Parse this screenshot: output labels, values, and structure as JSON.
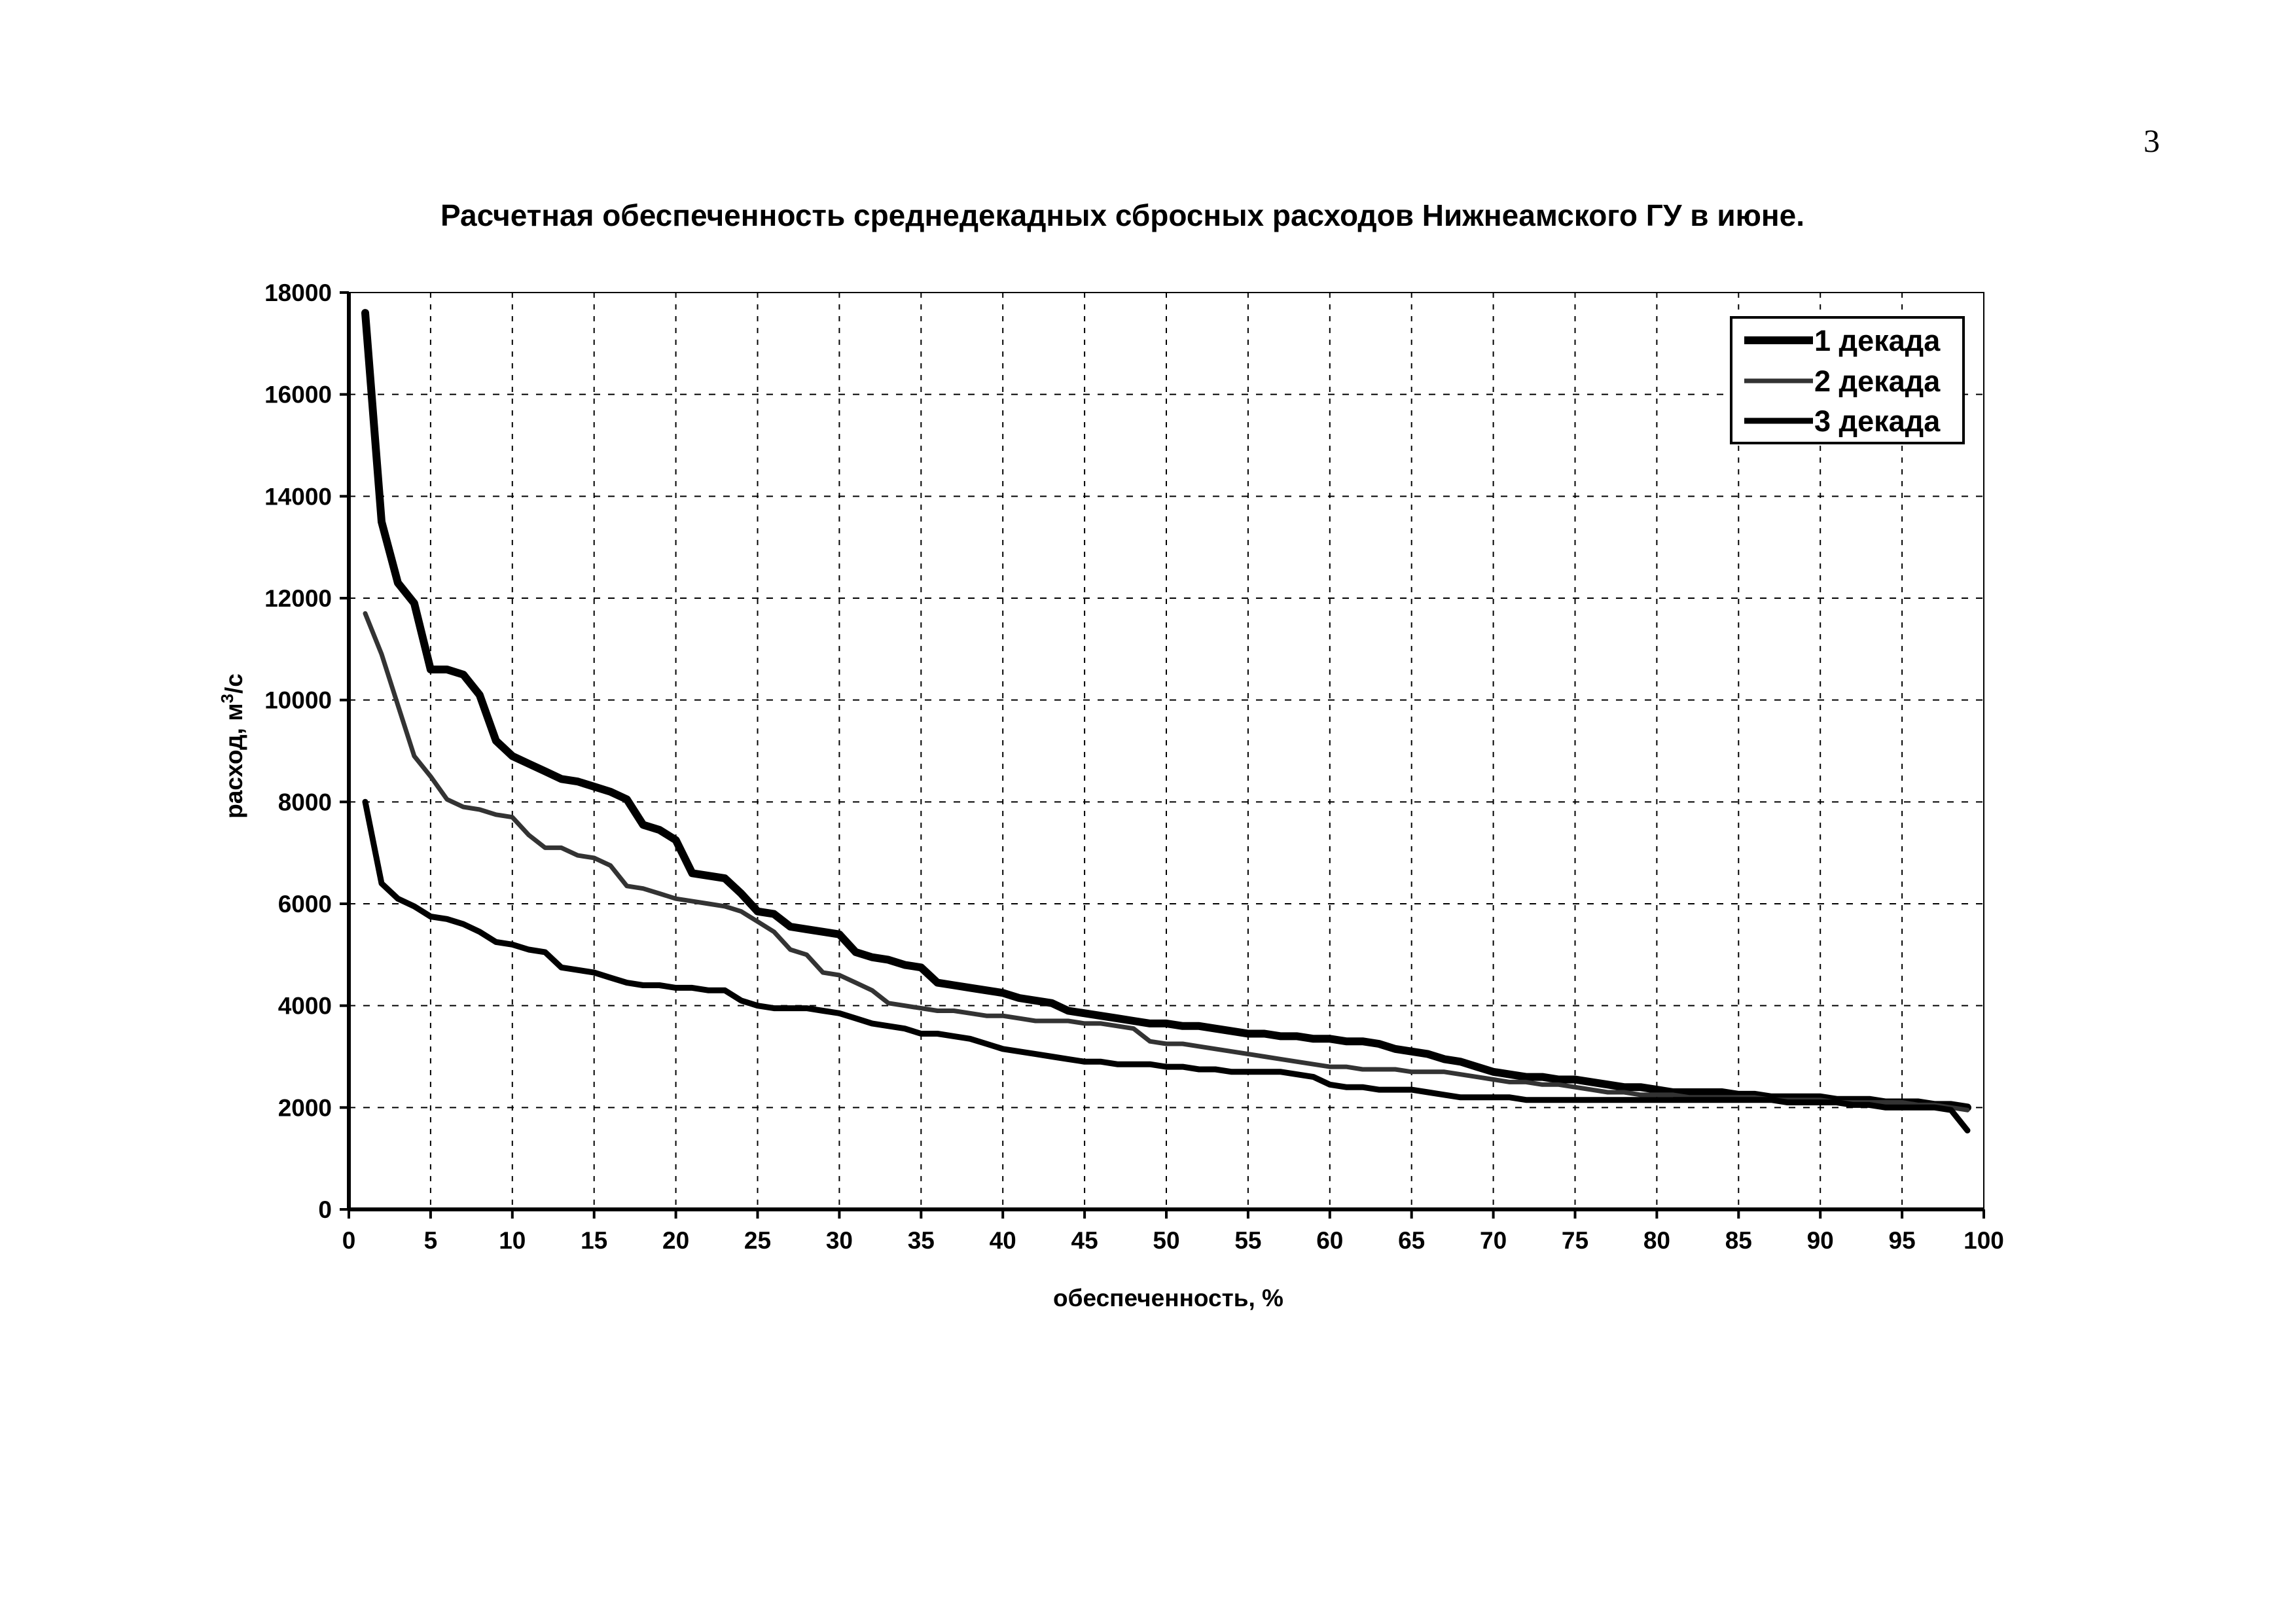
{
  "page": {
    "number": "3"
  },
  "chart_data": {
    "type": "line",
    "title": "Расчетная обеспеченность среднедекадных сбросных расходов Нижнеамского ГУ в июне.",
    "xlabel": "обеспеченность, %",
    "ylabel_prefix": "расход, м",
    "ylabel_sup": "3",
    "ylabel_suffix": "/с",
    "xlim": [
      0,
      100
    ],
    "ylim": [
      0,
      18000
    ],
    "x_ticks": [
      "0",
      "5",
      "10",
      "15",
      "20",
      "25",
      "30",
      "35",
      "40",
      "45",
      "50",
      "55",
      "60",
      "65",
      "70",
      "75",
      "80",
      "85",
      "90",
      "95",
      "100"
    ],
    "y_ticks": [
      "0",
      "2000",
      "4000",
      "6000",
      "8000",
      "10000",
      "12000",
      "14000",
      "16000",
      "18000"
    ],
    "grid": true,
    "legend_position": "top-right",
    "series": [
      {
        "name": "1 декада",
        "color": "#000000",
        "x": [
          1,
          2,
          3,
          4,
          5,
          6,
          7,
          8,
          9,
          10,
          11,
          12,
          13,
          14,
          15,
          16,
          17,
          18,
          19,
          20,
          21,
          22,
          23,
          24,
          25,
          26,
          27,
          28,
          29,
          30,
          31,
          32,
          33,
          34,
          35,
          36,
          37,
          38,
          39,
          40,
          41,
          42,
          43,
          44,
          45,
          46,
          47,
          48,
          49,
          50,
          51,
          52,
          53,
          54,
          55,
          56,
          57,
          58,
          59,
          60,
          61,
          62,
          63,
          64,
          65,
          66,
          67,
          68,
          69,
          70,
          71,
          72,
          73,
          74,
          75,
          76,
          77,
          78,
          79,
          80,
          81,
          82,
          83,
          84,
          85,
          86,
          87,
          88,
          89,
          90,
          91,
          92,
          93,
          94,
          95,
          96,
          97,
          98,
          99
        ],
        "y": [
          17600,
          13500,
          12300,
          11900,
          10600,
          10600,
          10500,
          10100,
          9200,
          8900,
          8750,
          8600,
          8450,
          8400,
          8300,
          8200,
          8050,
          7550,
          7450,
          7250,
          6600,
          6550,
          6500,
          6200,
          5850,
          5800,
          5550,
          5500,
          5450,
          5400,
          5050,
          4950,
          4900,
          4800,
          4750,
          4450,
          4400,
          4350,
          4300,
          4250,
          4150,
          4100,
          4050,
          3900,
          3850,
          3800,
          3750,
          3700,
          3650,
          3650,
          3600,
          3600,
          3550,
          3500,
          3450,
          3450,
          3400,
          3400,
          3350,
          3350,
          3300,
          3300,
          3250,
          3150,
          3100,
          3050,
          2950,
          2900,
          2800,
          2700,
          2650,
          2600,
          2600,
          2550,
          2550,
          2500,
          2450,
          2400,
          2400,
          2350,
          2300,
          2300,
          2300,
          2300,
          2250,
          2250,
          2200,
          2200,
          2200,
          2200,
          2150,
          2150,
          2150,
          2100,
          2100,
          2100,
          2050,
          2050,
          2000
        ]
      },
      {
        "name": "2 декада",
        "color": "#333333",
        "x": [
          1,
          2,
          3,
          4,
          5,
          6,
          7,
          8,
          9,
          10,
          11,
          12,
          13,
          14,
          15,
          16,
          17,
          18,
          19,
          20,
          21,
          22,
          23,
          24,
          25,
          26,
          27,
          28,
          29,
          30,
          31,
          32,
          33,
          34,
          35,
          36,
          37,
          38,
          39,
          40,
          41,
          42,
          43,
          44,
          45,
          46,
          47,
          48,
          49,
          50,
          51,
          52,
          53,
          54,
          55,
          56,
          57,
          58,
          59,
          60,
          61,
          62,
          63,
          64,
          65,
          66,
          67,
          68,
          69,
          70,
          71,
          72,
          73,
          74,
          75,
          76,
          77,
          78,
          79,
          80,
          81,
          82,
          83,
          84,
          85,
          86,
          87,
          88,
          89,
          90,
          91,
          92,
          93,
          94,
          95,
          96,
          97,
          98,
          99
        ],
        "y": [
          11700,
          10900,
          9900,
          8900,
          8500,
          8050,
          7900,
          7850,
          7750,
          7700,
          7350,
          7100,
          7100,
          6950,
          6900,
          6750,
          6350,
          6300,
          6200,
          6100,
          6050,
          6000,
          5950,
          5850,
          5650,
          5450,
          5100,
          5000,
          4650,
          4600,
          4450,
          4300,
          4050,
          4000,
          3950,
          3900,
          3900,
          3850,
          3800,
          3800,
          3750,
          3700,
          3700,
          3700,
          3650,
          3650,
          3600,
          3550,
          3300,
          3250,
          3250,
          3200,
          3150,
          3100,
          3050,
          3000,
          2950,
          2900,
          2850,
          2800,
          2800,
          2750,
          2750,
          2750,
          2700,
          2700,
          2700,
          2650,
          2600,
          2550,
          2500,
          2500,
          2450,
          2450,
          2400,
          2350,
          2300,
          2300,
          2250,
          2250,
          2250,
          2200,
          2200,
          2200,
          2200,
          2200,
          2150,
          2150,
          2150,
          2150,
          2100,
          2100,
          2100,
          2100,
          2100,
          2050,
          2050,
          2000,
          1950
        ]
      },
      {
        "name": "3 декада",
        "color": "#000000",
        "x": [
          1,
          2,
          3,
          4,
          5,
          6,
          7,
          8,
          9,
          10,
          11,
          12,
          13,
          14,
          15,
          16,
          17,
          18,
          19,
          20,
          21,
          22,
          23,
          24,
          25,
          26,
          27,
          28,
          29,
          30,
          31,
          32,
          33,
          34,
          35,
          36,
          37,
          38,
          39,
          40,
          41,
          42,
          43,
          44,
          45,
          46,
          47,
          48,
          49,
          50,
          51,
          52,
          53,
          54,
          55,
          56,
          57,
          58,
          59,
          60,
          61,
          62,
          63,
          64,
          65,
          66,
          67,
          68,
          69,
          70,
          71,
          72,
          73,
          74,
          75,
          76,
          77,
          78,
          79,
          80,
          81,
          82,
          83,
          84,
          85,
          86,
          87,
          88,
          89,
          90,
          91,
          92,
          93,
          94,
          95,
          96,
          97,
          98,
          99
        ],
        "y": [
          8000,
          6400,
          6100,
          5950,
          5750,
          5700,
          5600,
          5450,
          5250,
          5200,
          5100,
          5050,
          4750,
          4700,
          4650,
          4550,
          4450,
          4400,
          4400,
          4350,
          4350,
          4300,
          4300,
          4100,
          4000,
          3950,
          3950,
          3950,
          3900,
          3850,
          3750,
          3650,
          3600,
          3550,
          3450,
          3450,
          3400,
          3350,
          3250,
          3150,
          3100,
          3050,
          3000,
          2950,
          2900,
          2900,
          2850,
          2850,
          2850,
          2800,
          2800,
          2750,
          2750,
          2700,
          2700,
          2700,
          2700,
          2650,
          2600,
          2450,
          2400,
          2400,
          2350,
          2350,
          2350,
          2300,
          2250,
          2200,
          2200,
          2200,
          2200,
          2150,
          2150,
          2150,
          2150,
          2150,
          2150,
          2150,
          2150,
          2150,
          2150,
          2150,
          2150,
          2150,
          2150,
          2150,
          2150,
          2100,
          2100,
          2100,
          2100,
          2050,
          2050,
          2000,
          2000,
          2000,
          2000,
          1950,
          1550
        ]
      }
    ]
  }
}
